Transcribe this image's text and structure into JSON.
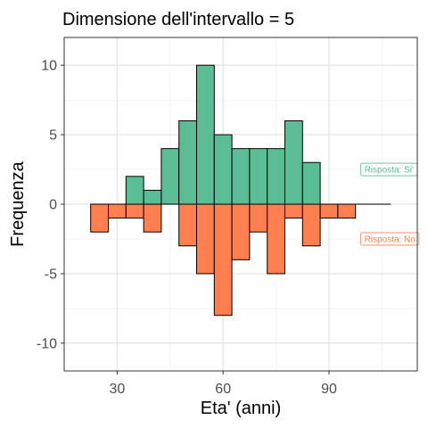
{
  "chart_data": {
    "type": "bar",
    "title": "Dimensione dell'intervallo = 5",
    "xlabel": "Eta' (anni)",
    "ylabel": "Frequenza",
    "xlim": [
      15,
      115
    ],
    "ylim": [
      -12,
      12
    ],
    "xticks": [
      30,
      60,
      90
    ],
    "yticks": [
      -10,
      -5,
      0,
      5,
      10
    ],
    "grid": true,
    "bin_width": 5,
    "bin_starts": [
      22.5,
      27.5,
      32.5,
      37.5,
      42.5,
      47.5,
      52.5,
      57.5,
      62.5,
      67.5,
      72.5,
      77.5,
      82.5,
      87.5,
      92.5,
      97.5,
      102.5
    ],
    "series": [
      {
        "name": "Si'",
        "label": "Risposta: Si'",
        "color": "#5BBD95",
        "values": [
          0,
          0,
          2,
          1,
          4,
          6,
          10,
          5,
          4,
          4,
          4,
          6,
          3,
          0,
          0,
          0,
          0
        ]
      },
      {
        "name": "No",
        "label": "Risposta: No",
        "color": "#FF7F50",
        "values": [
          -2,
          -1,
          -1,
          -2,
          0,
          -3,
          -5,
          -8,
          -4,
          -2,
          -5,
          -1,
          -3,
          -1,
          -1,
          0,
          0
        ]
      }
    ],
    "annotations": [
      {
        "text": "Risposta: Si'",
        "x": 100,
        "y": 2.5,
        "series": 0
      },
      {
        "text": "Risposta: No",
        "x": 100,
        "y": -2.5,
        "series": 1
      }
    ]
  }
}
